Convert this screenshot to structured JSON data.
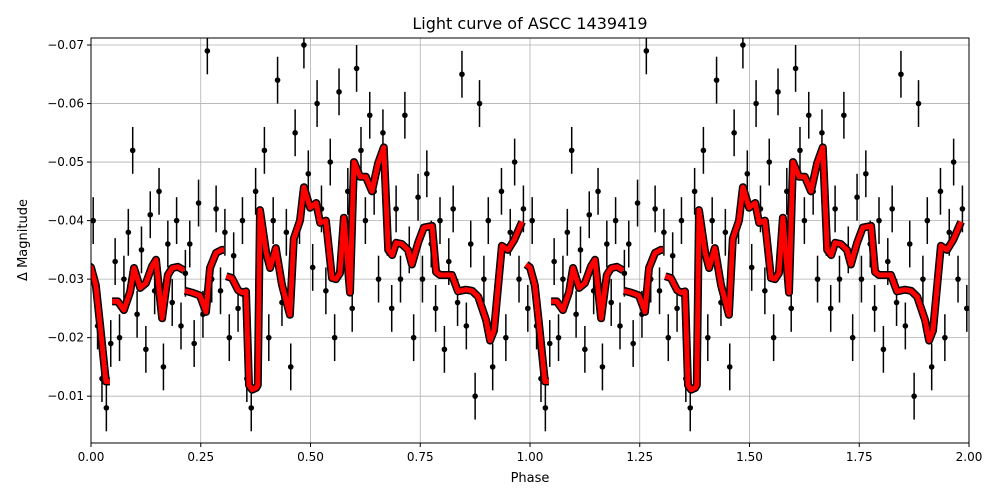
{
  "chart_data": {
    "type": "scatter",
    "title": "Light curve of ASCC 1439419",
    "xlabel": "Phase",
    "ylabel": "Δ Magnitude",
    "xlim": [
      0,
      2
    ],
    "ylim": [
      -0.0712,
      -0.002
    ],
    "y_inverted": true,
    "grid": true,
    "xticks": [
      "0.00",
      "0.25",
      "0.50",
      "0.75",
      "1.00",
      "1.25",
      "1.50",
      "1.75",
      "2.00"
    ],
    "xtick_values": [
      0,
      0.25,
      0.5,
      0.75,
      1,
      1.25,
      1.5,
      1.75,
      2
    ],
    "yticks": [
      "−0.07",
      "−0.06",
      "−0.05",
      "−0.04",
      "−0.03",
      "−0.02",
      "−0.01"
    ],
    "ytick_values": [
      -0.07,
      -0.06,
      -0.05,
      -0.04,
      -0.03,
      -0.02,
      -0.01
    ],
    "period_repeat": 1,
    "points_color": "#000000",
    "curve_color": "#ff0000",
    "point_error": 0.004,
    "points": [
      [
        0.005,
        -0.04
      ],
      [
        0.015,
        -0.022
      ],
      [
        0.025,
        -0.013
      ],
      [
        0.035,
        -0.008
      ],
      [
        0.045,
        -0.019
      ],
      [
        0.055,
        -0.033
      ],
      [
        0.065,
        -0.02
      ],
      [
        0.075,
        -0.03
      ],
      [
        0.085,
        -0.038
      ],
      [
        0.095,
        -0.052
      ],
      [
        0.105,
        -0.024
      ],
      [
        0.115,
        -0.035
      ],
      [
        0.125,
        -0.018
      ],
      [
        0.135,
        -0.041
      ],
      [
        0.145,
        -0.028
      ],
      [
        0.155,
        -0.045
      ],
      [
        0.165,
        -0.015
      ],
      [
        0.175,
        -0.036
      ],
      [
        0.185,
        -0.026
      ],
      [
        0.195,
        -0.04
      ],
      [
        0.205,
        -0.022
      ],
      [
        0.215,
        -0.031
      ],
      [
        0.225,
        -0.036
      ],
      [
        0.235,
        -0.019
      ],
      [
        0.245,
        -0.043
      ],
      [
        0.255,
        -0.024
      ],
      [
        0.265,
        -0.069
      ],
      [
        0.275,
        -0.03
      ],
      [
        0.285,
        -0.042
      ],
      [
        0.295,
        -0.028
      ],
      [
        0.305,
        -0.038
      ],
      [
        0.315,
        -0.02
      ],
      [
        0.325,
        -0.034
      ],
      [
        0.335,
        -0.025
      ],
      [
        0.345,
        -0.04
      ],
      [
        0.355,
        -0.013
      ],
      [
        0.365,
        -0.008
      ],
      [
        0.375,
        -0.045
      ],
      [
        0.385,
        -0.03
      ],
      [
        0.395,
        -0.052
      ],
      [
        0.405,
        -0.02
      ],
      [
        0.415,
        -0.04
      ],
      [
        0.425,
        -0.064
      ],
      [
        0.435,
        -0.026
      ],
      [
        0.445,
        -0.038
      ],
      [
        0.455,
        -0.015
      ],
      [
        0.465,
        -0.055
      ],
      [
        0.475,
        -0.04
      ],
      [
        0.485,
        -0.07
      ],
      [
        0.495,
        -0.048
      ],
      [
        0.505,
        -0.032
      ],
      [
        0.515,
        -0.06
      ],
      [
        0.525,
        -0.042
      ],
      [
        0.535,
        -0.028
      ],
      [
        0.545,
        -0.05
      ],
      [
        0.555,
        -0.02
      ],
      [
        0.565,
        -0.062
      ],
      [
        0.575,
        -0.035
      ],
      [
        0.585,
        -0.045
      ],
      [
        0.595,
        -0.025
      ],
      [
        0.605,
        -0.066
      ],
      [
        0.615,
        -0.052
      ],
      [
        0.625,
        -0.04
      ],
      [
        0.635,
        -0.058
      ],
      [
        0.645,
        -0.045
      ],
      [
        0.655,
        -0.03
      ],
      [
        0.665,
        -0.055
      ],
      [
        0.675,
        -0.038
      ],
      [
        0.685,
        -0.025
      ],
      [
        0.695,
        -0.042
      ],
      [
        0.705,
        -0.03
      ],
      [
        0.715,
        -0.058
      ],
      [
        0.725,
        -0.035
      ],
      [
        0.735,
        -0.02
      ],
      [
        0.745,
        -0.044
      ],
      [
        0.755,
        -0.03
      ],
      [
        0.765,
        -0.048
      ],
      [
        0.775,
        -0.036
      ],
      [
        0.785,
        -0.025
      ],
      [
        0.795,
        -0.04
      ],
      [
        0.805,
        -0.018
      ],
      [
        0.815,
        -0.033
      ],
      [
        0.825,
        -0.042
      ],
      [
        0.835,
        -0.026
      ],
      [
        0.845,
        -0.065
      ],
      [
        0.855,
        -0.022
      ],
      [
        0.865,
        -0.036
      ],
      [
        0.875,
        -0.01
      ],
      [
        0.885,
        -0.06
      ],
      [
        0.895,
        -0.03
      ],
      [
        0.905,
        -0.04
      ],
      [
        0.915,
        -0.015
      ],
      [
        0.925,
        -0.025
      ],
      [
        0.935,
        -0.045
      ],
      [
        0.945,
        -0.02
      ],
      [
        0.955,
        -0.038
      ],
      [
        0.965,
        -0.05
      ],
      [
        0.975,
        -0.03
      ],
      [
        0.985,
        -0.042
      ],
      [
        0.995,
        -0.025
      ]
    ],
    "curve_segments": [
      [
        [
          -0.009,
          -0.0325
        ],
        [
          0.0,
          -0.032
        ],
        [
          0.011,
          -0.029
        ],
        [
          0.021,
          -0.022
        ],
        [
          0.034,
          -0.0125
        ],
        [
          0.043,
          -0.0125
        ]
      ],
      [
        [
          0.048,
          -0.0262
        ],
        [
          0.061,
          -0.0262
        ],
        [
          0.075,
          -0.0247
        ],
        [
          0.089,
          -0.0278
        ],
        [
          0.098,
          -0.0319
        ],
        [
          0.112,
          -0.0285
        ],
        [
          0.125,
          -0.0293
        ],
        [
          0.139,
          -0.0322
        ],
        [
          0.148,
          -0.0333
        ],
        [
          0.162,
          -0.0233
        ],
        [
          0.175,
          -0.0307
        ],
        [
          0.185,
          -0.0319
        ],
        [
          0.198,
          -0.0321
        ],
        [
          0.212,
          -0.0315
        ]
      ],
      [
        [
          0.214,
          -0.028
        ],
        [
          0.23,
          -0.0277
        ],
        [
          0.248,
          -0.0272
        ],
        [
          0.262,
          -0.0244
        ],
        [
          0.271,
          -0.0319
        ],
        [
          0.285,
          -0.0345
        ],
        [
          0.298,
          -0.035
        ],
        [
          0.303,
          -0.035
        ]
      ],
      [
        [
          0.308,
          -0.0305
        ],
        [
          0.321,
          -0.0302
        ],
        [
          0.335,
          -0.0281
        ],
        [
          0.344,
          -0.0277
        ],
        [
          0.353,
          -0.0279
        ],
        [
          0.36,
          -0.0119
        ],
        [
          0.367,
          -0.0111
        ],
        [
          0.376,
          -0.0114
        ],
        [
          0.38,
          -0.0119
        ],
        [
          0.385,
          -0.0418
        ],
        [
          0.399,
          -0.0345
        ],
        [
          0.408,
          -0.0319
        ],
        [
          0.421,
          -0.0353
        ],
        [
          0.435,
          -0.029
        ],
        [
          0.453,
          -0.0239
        ],
        [
          0.462,
          -0.0369
        ],
        [
          0.476,
          -0.04
        ],
        [
          0.485,
          -0.0457
        ],
        [
          0.499,
          -0.0422
        ],
        [
          0.513,
          -0.043
        ],
        [
          0.522,
          -0.0396
        ],
        [
          0.535,
          -0.04
        ],
        [
          0.549,
          -0.0302
        ],
        [
          0.558,
          -0.03
        ],
        [
          0.567,
          -0.031
        ],
        [
          0.576,
          -0.0405
        ],
        [
          0.59,
          -0.0277
        ],
        [
          0.599,
          -0.05
        ],
        [
          0.613,
          -0.0475
        ],
        [
          0.626,
          -0.0475
        ],
        [
          0.64,
          -0.045
        ],
        [
          0.654,
          -0.0498
        ],
        [
          0.667,
          -0.0525
        ],
        [
          0.677,
          -0.035
        ],
        [
          0.686,
          -0.0341
        ],
        [
          0.695,
          -0.0362
        ],
        [
          0.708,
          -0.036
        ],
        [
          0.722,
          -0.035
        ],
        [
          0.731,
          -0.0325
        ],
        [
          0.745,
          -0.0362
        ],
        [
          0.758,
          -0.0388
        ],
        [
          0.777,
          -0.0391
        ],
        [
          0.786,
          -0.0312
        ],
        [
          0.795,
          -0.0307
        ],
        [
          0.809,
          -0.0307
        ],
        [
          0.822,
          -0.0307
        ],
        [
          0.836,
          -0.0279
        ],
        [
          0.854,
          -0.0282
        ],
        [
          0.868,
          -0.028
        ],
        [
          0.882,
          -0.027
        ],
        [
          0.9,
          -0.023
        ],
        [
          0.909,
          -0.0195
        ],
        [
          0.918,
          -0.0212
        ],
        [
          0.936,
          -0.0357
        ],
        [
          0.95,
          -0.035
        ],
        [
          0.964,
          -0.0367
        ],
        [
          0.978,
          -0.0391
        ],
        [
          0.982,
          -0.0398
        ]
      ]
    ]
  }
}
